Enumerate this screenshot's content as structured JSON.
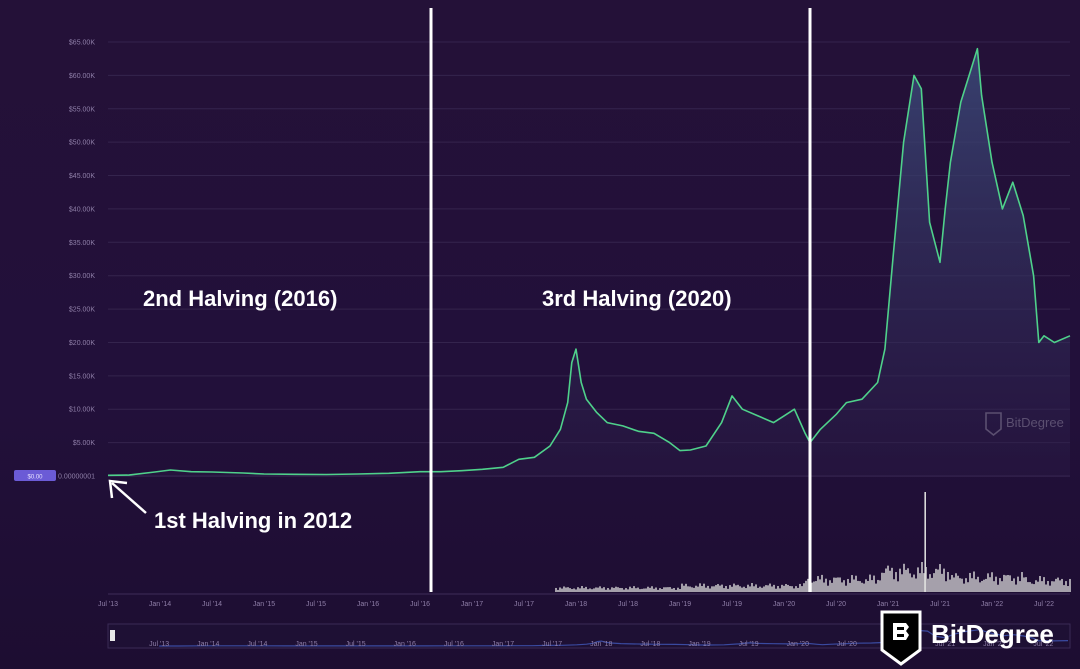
{
  "chart_data": {
    "type": "area",
    "title": "",
    "xlabel": "",
    "ylabel": "",
    "ylim": [
      0,
      70000
    ],
    "yticks": [
      "$5.00K",
      "$10.00K",
      "$15.00K",
      "$20.00K",
      "$25.00K",
      "$30.00K",
      "$35.00K",
      "$40.00K",
      "$45.00K",
      "$50.00K",
      "$55.00K",
      "$60.00K",
      "$65.00K"
    ],
    "ytick_values": [
      5000,
      10000,
      15000,
      20000,
      25000,
      30000,
      35000,
      40000,
      45000,
      50000,
      55000,
      60000,
      65000
    ],
    "xticks": [
      "Jul '13",
      "Jan '14",
      "Jul '14",
      "Jan '15",
      "Jul '15",
      "Jan '16",
      "Jul '16",
      "Jan '17",
      "Jul '17",
      "Jan '18",
      "Jul '18",
      "Jan '19",
      "Jul '19",
      "Jan '20",
      "Jul '20",
      "Jan '21",
      "Jul '21",
      "Jan '22",
      "Jul '22"
    ],
    "xtick_values": [
      2013.5,
      2014.0,
      2014.5,
      2015.0,
      2015.5,
      2016.0,
      2016.5,
      2017.0,
      2017.5,
      2018.0,
      2018.5,
      2019.0,
      2019.5,
      2020.0,
      2020.5,
      2021.0,
      2021.5,
      2022.0,
      2022.5
    ],
    "xlim": [
      2013.5,
      2022.75
    ],
    "series": [
      {
        "values_x": [
          2013.5,
          2013.7,
          2013.95,
          2014.1,
          2014.3,
          2014.5,
          2014.8,
          2015.0,
          2015.3,
          2015.6,
          2015.9,
          2016.2,
          2016.5,
          2016.7,
          2016.9,
          2017.1,
          2017.3,
          2017.45,
          2017.6,
          2017.75,
          2017.85,
          2017.92,
          2017.96,
          2018.0,
          2018.05,
          2018.1,
          2018.2,
          2018.3,
          2018.45,
          2018.6,
          2018.75,
          2018.9,
          2019.0,
          2019.1,
          2019.25,
          2019.4,
          2019.5,
          2019.6,
          2019.75,
          2019.9,
          2020.0,
          2020.1,
          2020.2,
          2020.25,
          2020.35,
          2020.5,
          2020.6,
          2020.75,
          2020.9,
          2020.97,
          2021.05,
          2021.15,
          2021.25,
          2021.32,
          2021.4,
          2021.45,
          2021.5,
          2021.55,
          2021.6,
          2021.7,
          2021.8,
          2021.86,
          2021.9,
          2022.0,
          2022.1,
          2022.2,
          2022.3,
          2022.4,
          2022.45,
          2022.5,
          2022.6,
          2022.75
        ],
        "values": [
          100,
          130,
          600,
          900,
          650,
          600,
          450,
          300,
          250,
          230,
          300,
          400,
          650,
          650,
          800,
          1000,
          1300,
          2500,
          2800,
          4500,
          7000,
          11000,
          17000,
          19000,
          14000,
          11500,
          9500,
          8000,
          7500,
          6700,
          6400,
          5000,
          3800,
          3900,
          4500,
          8000,
          12000,
          10000,
          9000,
          8000,
          9000,
          10000,
          6500,
          5000,
          7000,
          9200,
          11000,
          11500,
          14000,
          19000,
          33000,
          50000,
          60000,
          58000,
          38000,
          35000,
          32000,
          40000,
          47000,
          56000,
          61000,
          64000,
          57000,
          47000,
          40000,
          44000,
          39000,
          30000,
          20000,
          21000,
          20000,
          21000
        ]
      }
    ],
    "volume_note": "volume histogram below price",
    "annotations": [
      "2nd Halving (2016)",
      "3rd Halving (2020)",
      "1st Halving in 2012"
    ],
    "halving_lines_x": [
      2016.5,
      2020.35
    ]
  },
  "texts": {
    "annot_2016": "2nd Halving (2016)",
    "annot_2020": "3rd Halving (2020)",
    "annot_2012": "1st Halving in 2012",
    "zero_label": "0.00000001",
    "price_badge": "$0.00",
    "brand_name": "BitDegree",
    "watermark_name": "BitDegree"
  },
  "colors": {
    "line": "#4fd18b",
    "fill_top": "#3a3a6a",
    "grid": "#3a2a55",
    "volume": "#d9d9d9",
    "halving_line": "#ffffff",
    "badge": "#6b5bd6"
  }
}
